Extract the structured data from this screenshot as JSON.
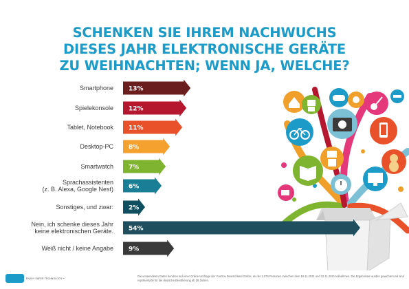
{
  "title_lines": [
    "SCHENKEN SIE IHREM NACHWUCHS",
    "DIESES JAHR ELEKTRONISCHE GERÄTE",
    "ZU WEIHNACHTEN; WENN JA, WELCHE?"
  ],
  "chart_data": {
    "type": "bar",
    "orientation": "horizontal",
    "value_format": "percent",
    "categories": [
      [
        "Smartphone"
      ],
      [
        "Spielekonsole"
      ],
      [
        "Tablet, Notebook"
      ],
      [
        "Desktop-PC"
      ],
      [
        "Smartwatch"
      ],
      [
        "Sprachassistenten",
        "(z. B. Alexa, Google Nest)"
      ],
      [
        "Sonstiges, und zwar:"
      ],
      [
        "Nein, ich schenke dieses Jahr",
        "keine elektronischen Geräte."
      ],
      [
        "Weiß nicht / keine Angabe"
      ]
    ],
    "values": [
      13,
      12,
      11,
      8,
      7,
      6,
      2,
      54,
      9
    ],
    "labels": [
      "13%",
      "12%",
      "11%",
      "8%",
      "7%",
      "6%",
      "2%",
      "54%",
      "9%"
    ],
    "colors": [
      "#6b1e1e",
      "#b5172e",
      "#e8512a",
      "#f5a130",
      "#7fb431",
      "#1a7f96",
      "#0f4f60",
      "#1f4f5f",
      "#3a3a3a"
    ],
    "xlim": [
      0,
      54
    ]
  },
  "colors": {
    "title": "#1c9bc8",
    "brand": "#1c9bc8",
    "text": "#3a3a3a"
  },
  "illustration": {
    "icons": [
      "bicycle-icon",
      "camera-icon",
      "phone-icon",
      "robot-icon",
      "teddy-bear-icon",
      "book-icon",
      "alarm-clock-icon",
      "monitor-icon",
      "gamepad-icon",
      "guitar-icon",
      "house-icon",
      "sun-icon",
      "gift-box-icon",
      "drone-icon",
      "camcorder-icon"
    ]
  },
  "footer": {
    "logo_text": "ESET",
    "tagline": "ENJOY SAFER TECHNOLOGY™",
    "note": "Die verwendeten Daten beruhen auf einer Online-Umfrage der YouGov Deutschland GmbH, an der 2.079 Personen zwischen dem 19.11.2021 und 22.11.2021 teilnahmen. Die Ergebnisse wurden gewichtet und sind repräsentativ für die deutsche Bevölkerung ab 18 Jahren."
  }
}
